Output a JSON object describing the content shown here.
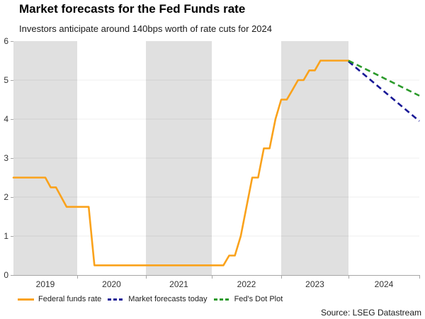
{
  "header": {
    "title": "Market forecasts for the Fed Funds rate",
    "subtitle": "Investors anticipate around 140bps worth of rate cuts for 2024"
  },
  "chart_data": {
    "type": "line",
    "title": "Market forecasts for the Fed Funds rate",
    "subtitle": "Investors anticipate around 140bps worth of rate cuts for 2024",
    "xlabel": "",
    "ylabel": "",
    "xlim": [
      2019,
      2025
    ],
    "ylim": [
      0,
      6
    ],
    "y_ticks": [
      0,
      1,
      2,
      3,
      4,
      5,
      6
    ],
    "x_ticks": [
      2019,
      2020,
      2021,
      2022,
      2023,
      2024
    ],
    "shaded_years": [
      2019,
      2021,
      2023
    ],
    "band_color": "#E0E0E0",
    "grid": true,
    "legend_position": "bottom",
    "series": [
      {
        "name": "Federal funds rate",
        "color": "#FAA21B",
        "style": "solid",
        "points": [
          [
            2019.0,
            2.5
          ],
          [
            2019.5,
            2.5
          ],
          [
            2019.583,
            2.25
          ],
          [
            2019.667,
            2.25
          ],
          [
            2019.75,
            2.0
          ],
          [
            2019.833,
            1.75
          ],
          [
            2020.167,
            1.75
          ],
          [
            2020.25,
            0.25
          ],
          [
            2022.167,
            0.25
          ],
          [
            2022.25,
            0.5
          ],
          [
            2022.333,
            0.5
          ],
          [
            2022.417,
            1.0
          ],
          [
            2022.5,
            1.75
          ],
          [
            2022.583,
            2.5
          ],
          [
            2022.667,
            2.5
          ],
          [
            2022.75,
            3.25
          ],
          [
            2022.833,
            3.25
          ],
          [
            2022.917,
            4.0
          ],
          [
            2023.0,
            4.5
          ],
          [
            2023.083,
            4.5
          ],
          [
            2023.167,
            4.75
          ],
          [
            2023.25,
            5.0
          ],
          [
            2023.333,
            5.0
          ],
          [
            2023.417,
            5.25
          ],
          [
            2023.5,
            5.25
          ],
          [
            2023.583,
            5.5
          ],
          [
            2024.0,
            5.5
          ]
        ]
      },
      {
        "name": "Market forecasts today",
        "color": "#181896",
        "style": "dashed",
        "points": [
          [
            2024.0,
            5.48
          ],
          [
            2025.0,
            3.95
          ]
        ]
      },
      {
        "name": "Fed's Dot Plot",
        "color": "#2A9A2A",
        "style": "dashed",
        "points": [
          [
            2024.0,
            5.5
          ],
          [
            2025.0,
            4.6
          ]
        ]
      }
    ]
  },
  "source": "Source: LSEG Datastream"
}
